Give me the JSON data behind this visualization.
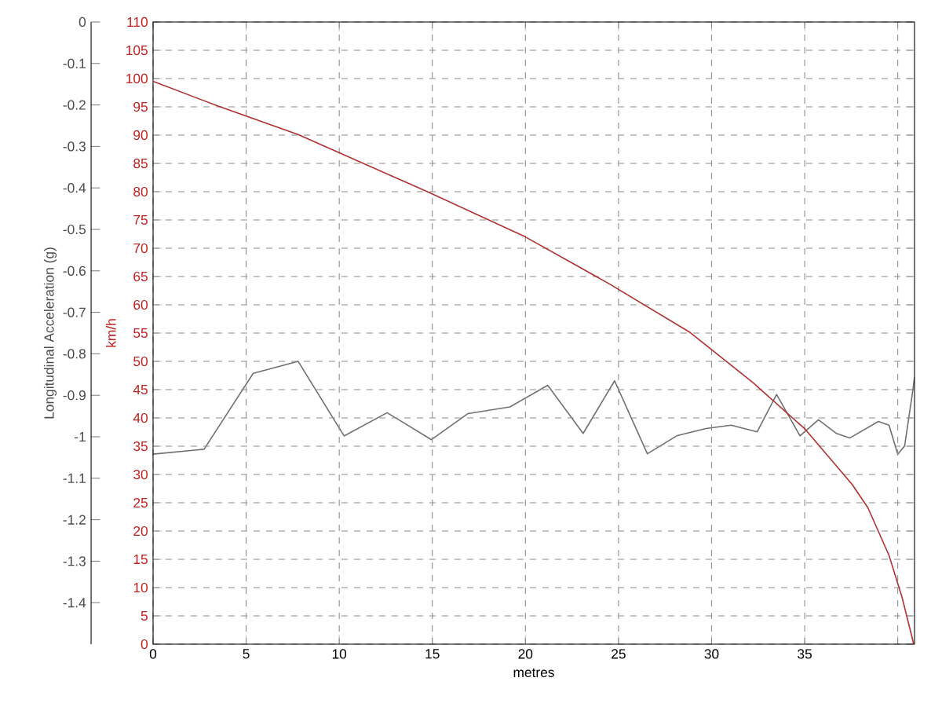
{
  "chart_data": {
    "type": "line",
    "xlabel": "metres",
    "ylabel": "km/h",
    "y2label": "Longitudinal Acceleration (g)",
    "xlim": [
      0,
      40.9
    ],
    "xticks": [
      0,
      5,
      10,
      15,
      20,
      25,
      30,
      35,
      {
        "value": 40,
        "label": null
      }
    ],
    "ylim": [
      0,
      110
    ],
    "yticks": [
      0,
      5,
      10,
      15,
      20,
      25,
      30,
      35,
      40,
      45,
      50,
      55,
      60,
      65,
      70,
      75,
      80,
      85,
      90,
      95,
      100,
      105,
      110
    ],
    "y2lim": [
      -1.5,
      0
    ],
    "y2ticks": [
      0,
      -0.1,
      -0.2,
      -0.3,
      -0.4,
      -0.5,
      -0.6,
      -0.7,
      -0.8,
      -0.9,
      -1,
      -1.1,
      -1.2,
      -1.3,
      -1.4
    ],
    "grid": true,
    "series": [
      {
        "color": "#b03030",
        "x": [
          0,
          3.52,
          7.79,
          14.8,
          20.0,
          24.4,
          28.85,
          32.2,
          35.03,
          37.56,
          38.4,
          39.53,
          40.23,
          40.79,
          40.85
        ],
        "values": [
          99.5,
          95.1,
          90.1,
          79.9,
          72.0,
          63.9,
          55.1,
          46.3,
          38.0,
          28.2,
          24.1,
          15.7,
          8.3,
          0.9,
          0
        ]
      },
      {
        "color": "#707070",
        "axis": "y2",
        "x": [
          0,
          2.74,
          5.38,
          7.79,
          10.26,
          12.57,
          14.95,
          16.92,
          19.17,
          21.2,
          23.1,
          24.79,
          26.55,
          28.16,
          29.7,
          31.05,
          32.45,
          33.49,
          34.75,
          35.74,
          36.71,
          37.42,
          38.96,
          39.53,
          40.0,
          40.37,
          40.79,
          40.9
        ],
        "values": [
          -1.042,
          -1.03,
          -0.847,
          -0.818,
          -0.998,
          -0.942,
          -1.007,
          -0.944,
          -0.928,
          -0.876,
          -0.992,
          -0.865,
          -1.041,
          -0.997,
          -0.98,
          -0.972,
          -0.988,
          -0.898,
          -0.998,
          -0.959,
          -0.992,
          -1.003,
          -0.963,
          -0.972,
          -1.042,
          -1.022,
          -0.894,
          -0.856
        ]
      }
    ]
  }
}
